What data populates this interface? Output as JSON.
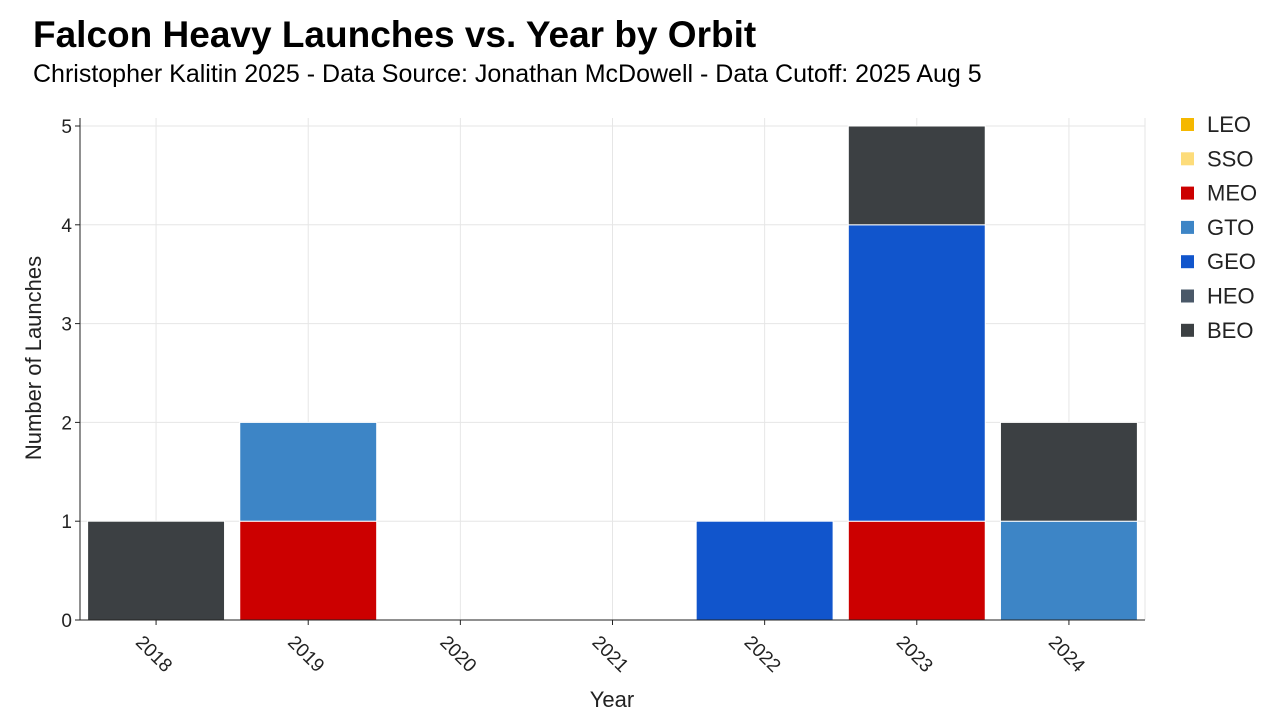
{
  "chart_data": {
    "type": "bar",
    "stacked": true,
    "title": "Falcon Heavy Launches vs. Year by Orbit",
    "subtitle": "Christopher Kalitin 2025 - Data Source: Jonathan McDowell - Data Cutoff: 2025 Aug 5",
    "xlabel": "Year",
    "ylabel": "Number of Launches",
    "categories": [
      "2018",
      "2019",
      "2020",
      "2021",
      "2022",
      "2023",
      "2024"
    ],
    "ylim": [
      0,
      5
    ],
    "yticks": [
      0,
      1,
      2,
      3,
      4,
      5
    ],
    "grid": true,
    "legend_position": "right",
    "series": [
      {
        "name": "LEO",
        "color": "#f5b800",
        "values": [
          0,
          0,
          0,
          0,
          0,
          0,
          0
        ]
      },
      {
        "name": "SSO",
        "color": "#fddc7a",
        "values": [
          0,
          0,
          0,
          0,
          0,
          0,
          0
        ]
      },
      {
        "name": "MEO",
        "color": "#cc0000",
        "values": [
          0,
          1,
          0,
          0,
          0,
          1,
          0
        ]
      },
      {
        "name": "GTO",
        "color": "#3d85c6",
        "values": [
          0,
          1,
          0,
          0,
          0,
          0,
          1
        ]
      },
      {
        "name": "GEO",
        "color": "#1155cc",
        "values": [
          0,
          0,
          0,
          0,
          1,
          3,
          0
        ]
      },
      {
        "name": "HEO",
        "color": "#4a5868",
        "values": [
          0,
          0,
          0,
          0,
          0,
          0,
          0
        ]
      },
      {
        "name": "BEO",
        "color": "#3c4043",
        "values": [
          1,
          0,
          0,
          0,
          0,
          1,
          1
        ]
      }
    ]
  }
}
